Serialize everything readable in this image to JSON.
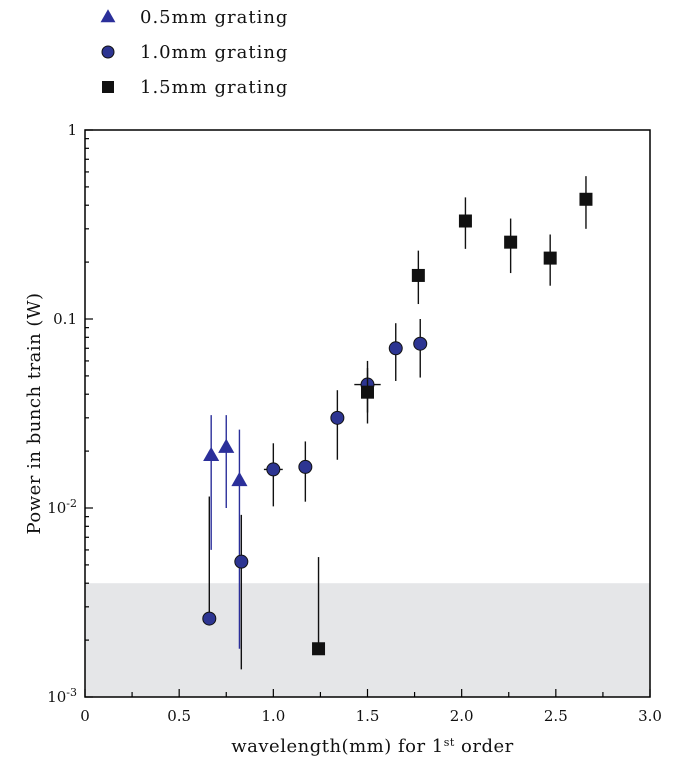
{
  "chart_data": {
    "type": "scatter",
    "title": "",
    "xlabel_main": "wavelength(mm) for 1",
    "xlabel_sup": "st",
    "xlabel_tail": " order",
    "ylabel": "Power in bunch train (W)",
    "xlim": [
      0,
      3.0
    ],
    "ylim": [
      0.001,
      1
    ],
    "y_scale": "log",
    "x_ticks": [
      "0",
      "0.5",
      "1.0",
      "1.5",
      "2.0",
      "2.5",
      "3.0"
    ],
    "x_tick_values": [
      0,
      0.5,
      1.0,
      1.5,
      2.0,
      2.5,
      3.0
    ],
    "y_tick_labels": [
      {
        "value": 1,
        "base": "1",
        "exp": ""
      },
      {
        "value": 0.1,
        "base": "0.1",
        "exp": ""
      },
      {
        "value": 0.01,
        "base": "10",
        "exp": "-2"
      },
      {
        "value": 0.001,
        "base": "10",
        "exp": "-3"
      }
    ],
    "shaded_region": {
      "y_min": 0.001,
      "y_max": 0.004,
      "color": "#e5e6e8"
    },
    "legend_placement": "top-left",
    "series": [
      {
        "name": "0.5mm grating",
        "marker": "triangle",
        "color": "#2b2f9a",
        "points": [
          {
            "x": 0.67,
            "y": 0.019,
            "ylo": 0.006,
            "yhi": 0.031
          },
          {
            "x": 0.75,
            "y": 0.021,
            "ylo": 0.01,
            "yhi": 0.031
          },
          {
            "x": 0.82,
            "y": 0.014,
            "ylo": 0.0018,
            "yhi": 0.026
          }
        ]
      },
      {
        "name": "1.0mm grating",
        "marker": "circle",
        "color": "#2d3592",
        "points": [
          {
            "x": 0.66,
            "y": 0.0026,
            "ylo": 0.0026,
            "yhi": 0.0115
          },
          {
            "x": 0.83,
            "y": 0.0052,
            "ylo": 0.0014,
            "yhi": 0.0092
          },
          {
            "x": 1.0,
            "y": 0.016,
            "ylo": 0.0102,
            "yhi": 0.022,
            "xerr": 0.05
          },
          {
            "x": 1.17,
            "y": 0.0165,
            "ylo": 0.0108,
            "yhi": 0.0225
          },
          {
            "x": 1.34,
            "y": 0.03,
            "ylo": 0.018,
            "yhi": 0.042
          },
          {
            "x": 1.5,
            "y": 0.045,
            "ylo": 0.032,
            "yhi": 0.06,
            "xerr": 0.07
          },
          {
            "x": 1.65,
            "y": 0.07,
            "ylo": 0.047,
            "yhi": 0.095
          },
          {
            "x": 1.78,
            "y": 0.074,
            "ylo": 0.049,
            "yhi": 0.1
          }
        ]
      },
      {
        "name": "1.5mm grating",
        "marker": "square",
        "color": "#111111",
        "points": [
          {
            "x": 1.24,
            "y": 0.0018,
            "ylo": 0.0018,
            "yhi": 0.0055
          },
          {
            "x": 1.5,
            "y": 0.041,
            "ylo": 0.028,
            "yhi": 0.055
          },
          {
            "x": 1.77,
            "y": 0.17,
            "ylo": 0.12,
            "yhi": 0.23
          },
          {
            "x": 2.02,
            "y": 0.33,
            "ylo": 0.235,
            "yhi": 0.44
          },
          {
            "x": 2.26,
            "y": 0.255,
            "ylo": 0.175,
            "yhi": 0.34
          },
          {
            "x": 2.47,
            "y": 0.21,
            "ylo": 0.15,
            "yhi": 0.28
          },
          {
            "x": 2.66,
            "y": 0.43,
            "ylo": 0.3,
            "yhi": 0.57
          }
        ]
      }
    ]
  }
}
